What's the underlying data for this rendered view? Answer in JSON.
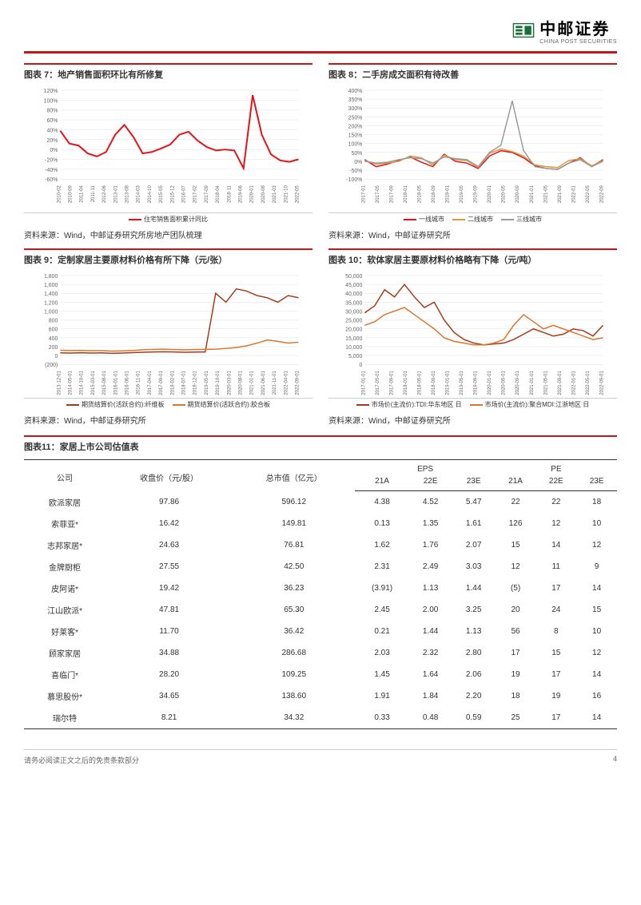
{
  "header": {
    "brand_name": "中邮证券",
    "brand_sub": "CHINA POST SECURITIES"
  },
  "charts": {
    "c7": {
      "title": "图表 7：地产销售面积环比有所修复",
      "source": "资料来源：Wind，中邮证券研究所房地产团队梳理",
      "type": "line",
      "ylim": [
        -60,
        120
      ],
      "ytick_step": 20,
      "y_labels": [
        "-60%",
        "-40%",
        "-20%",
        "0%",
        "20%",
        "40%",
        "60%",
        "80%",
        "100%",
        "120%"
      ],
      "x_labels": [
        "2010-02",
        "2010-09",
        "2011-04",
        "2011-11",
        "2012-06",
        "2013-01",
        "2013-08",
        "2014-03",
        "2014-10",
        "2015-05",
        "2015-12",
        "2016-07",
        "2017-02",
        "2017-09",
        "2018-04",
        "2018-11",
        "2019-06",
        "2020-01",
        "2020-08",
        "2021-03",
        "2021-10",
        "2022-05"
      ],
      "series": [
        {
          "name": "住宅销售面积累计同比",
          "color": "#e5121a",
          "line_width": 2,
          "data": [
            38,
            12,
            8,
            -8,
            -14,
            -5,
            30,
            50,
            25,
            -8,
            -5,
            2,
            10,
            30,
            36,
            18,
            5,
            -2,
            0,
            -2,
            -38,
            110,
            30,
            -10,
            -22,
            -25,
            -20
          ]
        }
      ],
      "legend": [
        "住宅销售面积累计同比"
      ],
      "grid_color": "#e0e0e0",
      "background": "#ffffff"
    },
    "c8": {
      "title": "图表 8：二手房成交面积有待改善",
      "source": "资料来源：Wind，中邮证券研究所",
      "type": "line",
      "ylim": [
        -100,
        400
      ],
      "ytick_step": 50,
      "y_labels": [
        "-100%",
        "-50%",
        "0%",
        "50%",
        "100%",
        "150%",
        "200%",
        "250%",
        "300%",
        "350%",
        "400%"
      ],
      "x_labels": [
        "2017-01",
        "2017-05",
        "2017-09",
        "2018-01",
        "2018-05",
        "2018-09",
        "2019-01",
        "2019-05",
        "2019-09",
        "2020-01",
        "2020-05",
        "2020-09",
        "2021-01",
        "2021-05",
        "2021-09",
        "2022-01",
        "2022-05",
        "2022-09"
      ],
      "series": [
        {
          "name": "一线城市",
          "color": "#e5121a",
          "line_width": 1.5,
          "data": [
            10,
            -30,
            -15,
            5,
            25,
            -5,
            -30,
            40,
            0,
            -10,
            -40,
            30,
            60,
            50,
            20,
            -25,
            -40,
            -45,
            -10,
            20,
            -30,
            10
          ]
        },
        {
          "name": "二线城市",
          "color": "#d89b3e",
          "line_width": 1.5,
          "data": [
            5,
            -15,
            -10,
            0,
            30,
            20,
            -20,
            35,
            10,
            5,
            -35,
            45,
            70,
            55,
            30,
            -20,
            -30,
            -35,
            5,
            15,
            -25,
            5
          ]
        },
        {
          "name": "三线城市",
          "color": "#9a9a9a",
          "line_width": 1.5,
          "data": [
            0,
            -10,
            -5,
            10,
            20,
            15,
            -10,
            25,
            15,
            10,
            -30,
            50,
            90,
            340,
            60,
            -30,
            -40,
            -45,
            -10,
            10,
            -30,
            0
          ]
        }
      ],
      "legend": [
        "一线城市",
        "二线城市",
        "三线城市"
      ],
      "grid_color": "#e0e0e0",
      "background": "#ffffff"
    },
    "c9": {
      "title": "图表 9：定制家居主要原材料价格有所下降（元/张）",
      "source": "资料来源：Wind，中邮证券研究所",
      "type": "line",
      "ylim": [
        -200,
        1800
      ],
      "ytick_step": 200,
      "y_labels": [
        "(200)",
        "0",
        "200",
        "400",
        "600",
        "800",
        "1,000",
        "1,200",
        "1,400",
        "1,600",
        "1,800"
      ],
      "x_labels": [
        "2013-12-01",
        "2014-05-01",
        "2014-10-01",
        "2015-03-01",
        "2015-08-01",
        "2016-01-01",
        "2016-06-01",
        "2016-11-01",
        "2017-04-01",
        "2017-09-01",
        "2018-02-01",
        "2018-07-01",
        "2018-12-01",
        "2019-05-01",
        "2019-10-01",
        "2020-03-01",
        "2020-08-01",
        "2021-01-01",
        "2021-06-01",
        "2021-11-01",
        "2022-04-01",
        "2022-09-01"
      ],
      "series": [
        {
          "name": "期货结算价(活跃合约):纤维板",
          "color": "#a83a1a",
          "line_width": 1.5,
          "data": [
            60,
            58,
            62,
            55,
            60,
            50,
            55,
            65,
            75,
            80,
            85,
            80,
            75,
            78,
            80,
            1400,
            1200,
            1500,
            1450,
            1350,
            1300,
            1200,
            1350,
            1300
          ]
        },
        {
          "name": "期货结算价(活跃合约):胶合板",
          "color": "#d8762e",
          "line_width": 1.5,
          "data": [
            120,
            115,
            118,
            110,
            112,
            100,
            105,
            115,
            130,
            140,
            145,
            135,
            130,
            135,
            140,
            145,
            160,
            180,
            220,
            280,
            350,
            320,
            280,
            300
          ]
        }
      ],
      "legend": [
        "期货结算价(活跃合约):纤维板",
        "期货结算价(活跃合约):胶合板"
      ],
      "grid_color": "#e0e0e0",
      "background": "#ffffff"
    },
    "c10": {
      "title": "图表 10：软体家居主要原材料价格略有下降（元/吨）",
      "source": "资料来源：Wind，中邮证券研究所",
      "type": "line",
      "ylim": [
        0,
        50000
      ],
      "ytick_step": 5000,
      "y_labels": [
        "0",
        "5,000",
        "10,000",
        "15,000",
        "20,000",
        "25,000",
        "30,000",
        "35,000",
        "40,000",
        "45,000",
        "50,000"
      ],
      "x_labels": [
        "2017-01-01",
        "2017-05-01",
        "2017-09-01",
        "2018-01-01",
        "2018-05-01",
        "2018-09-01",
        "2019-01-01",
        "2019-05-01",
        "2019-09-01",
        "2020-01-01",
        "2020-05-01",
        "2020-09-01",
        "2021-01-01",
        "2021-05-01",
        "2021-09-01",
        "2022-01-01",
        "2022-05-01",
        "2022-09-01"
      ],
      "series": [
        {
          "name": "市场价(主流价):TDI:华东地区 日",
          "color": "#a83a1a",
          "line_width": 1.5,
          "data": [
            29000,
            33000,
            42000,
            38000,
            45000,
            38000,
            32000,
            35000,
            25000,
            18000,
            14000,
            12000,
            11000,
            11500,
            12000,
            14000,
            17000,
            20000,
            18000,
            16000,
            17000,
            20000,
            19000,
            16000,
            22000
          ]
        },
        {
          "name": "市场价(主流价):聚合MDI:江浙地区 日",
          "color": "#d8762e",
          "line_width": 1.5,
          "data": [
            22000,
            24000,
            28000,
            30000,
            32000,
            28000,
            24000,
            20000,
            15000,
            13000,
            12000,
            11000,
            11000,
            12000,
            14000,
            22000,
            28000,
            24000,
            20000,
            22000,
            20000,
            18000,
            16000,
            14000,
            15000
          ]
        }
      ],
      "legend": [
        "市场价(主流价):TDI:华东地区 日",
        "市场价(主流价):聚合MDI:江浙地区 日"
      ],
      "grid_color": "#e0e0e0",
      "background": "#ffffff"
    }
  },
  "table": {
    "title": "图表11：家居上市公司估值表",
    "headers": {
      "company": "公司",
      "price": "收盘价（元/股）",
      "mktcap": "总市值（亿元）",
      "eps_group": "EPS",
      "pe_group": "PE",
      "eps_21a": "21A",
      "eps_22e": "22E",
      "eps_23e": "23E",
      "pe_21a": "21A",
      "pe_22e": "22E",
      "pe_23e": "23E"
    },
    "rows": [
      {
        "company": "欧派家居",
        "price": "97.86",
        "mktcap": "596.12",
        "eps21": "4.38",
        "eps22": "4.52",
        "eps23": "5.47",
        "pe21": "22",
        "pe22": "22",
        "pe23": "18"
      },
      {
        "company": "索菲亚*",
        "price": "16.42",
        "mktcap": "149.81",
        "eps21": "0.13",
        "eps22": "1.35",
        "eps23": "1.61",
        "pe21": "126",
        "pe22": "12",
        "pe23": "10"
      },
      {
        "company": "志邦家居*",
        "price": "24.63",
        "mktcap": "76.81",
        "eps21": "1.62",
        "eps22": "1.76",
        "eps23": "2.07",
        "pe21": "15",
        "pe22": "14",
        "pe23": "12"
      },
      {
        "company": "金牌厨柜",
        "price": "27.55",
        "mktcap": "42.50",
        "eps21": "2.31",
        "eps22": "2.49",
        "eps23": "3.03",
        "pe21": "12",
        "pe22": "11",
        "pe23": "9"
      },
      {
        "company": "皮阿诺*",
        "price": "19.42",
        "mktcap": "36.23",
        "eps21": "(3.91)",
        "eps22": "1.13",
        "eps23": "1.44",
        "pe21": "(5)",
        "pe22": "17",
        "pe23": "14"
      },
      {
        "company": "江山欧派*",
        "price": "47.81",
        "mktcap": "65.30",
        "eps21": "2.45",
        "eps22": "2.00",
        "eps23": "3.25",
        "pe21": "20",
        "pe22": "24",
        "pe23": "15"
      },
      {
        "company": "好莱客*",
        "price": "11.70",
        "mktcap": "36.42",
        "eps21": "0.21",
        "eps22": "1.44",
        "eps23": "1.13",
        "pe21": "56",
        "pe22": "8",
        "pe23": "10"
      },
      {
        "company": "顾家家居",
        "price": "34.88",
        "mktcap": "286.68",
        "eps21": "2.03",
        "eps22": "2.32",
        "eps23": "2.80",
        "pe21": "17",
        "pe22": "15",
        "pe23": "12"
      },
      {
        "company": "喜临门*",
        "price": "28.20",
        "mktcap": "109.25",
        "eps21": "1.45",
        "eps22": "1.64",
        "eps23": "2.06",
        "pe21": "19",
        "pe22": "17",
        "pe23": "14"
      },
      {
        "company": "慕思股份*",
        "price": "34.65",
        "mktcap": "138.60",
        "eps21": "1.91",
        "eps22": "1.84",
        "eps23": "2.20",
        "pe21": "18",
        "pe22": "19",
        "pe23": "16"
      },
      {
        "company": "瑞尔特",
        "price": "8.21",
        "mktcap": "34.32",
        "eps21": "0.33",
        "eps22": "0.48",
        "eps23": "0.59",
        "pe21": "25",
        "pe22": "17",
        "pe23": "14"
      }
    ]
  },
  "footer": {
    "disclaimer": "请务必阅读正文之后的免责条款部分",
    "page": "4"
  }
}
